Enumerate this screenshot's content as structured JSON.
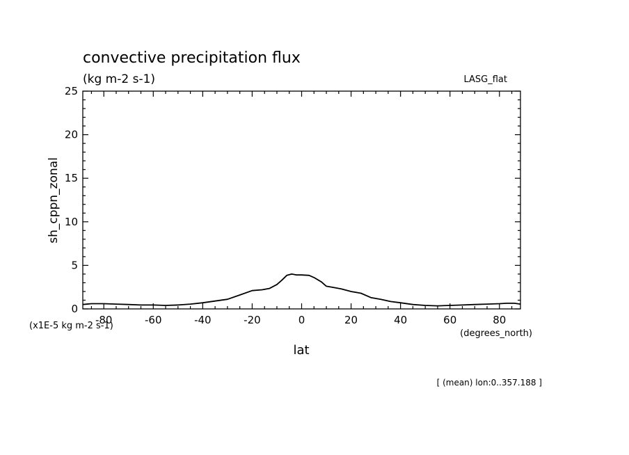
{
  "chart_data": {
    "type": "line",
    "title": "convective precipitation flux",
    "subtitle": "(kg m-2 s-1)",
    "dataset_label": "LASG_flat",
    "xlabel": "lat",
    "xunits": "(degrees_north)",
    "ylabel": "sh_cppn_zonal",
    "yunits": "(x1E-5 kg m-2 s-1)",
    "footnote": "[ (mean) lon:0..357.188 ]",
    "xlim": [
      -88.5,
      88.5
    ],
    "ylim": [
      0,
      25
    ],
    "x_ticks": [
      -80,
      -60,
      -40,
      -20,
      0,
      20,
      40,
      60,
      80
    ],
    "y_ticks": [
      0,
      5,
      10,
      15,
      20,
      25
    ],
    "grid": false,
    "line_color": "#000000",
    "series": [
      {
        "x": [
          -88.5,
          -85,
          -80,
          -75,
          -70,
          -65,
          -60,
          -55,
          -50,
          -45,
          -40,
          -35,
          -30,
          -25,
          -20,
          -16,
          -13,
          -10,
          -8,
          -6,
          -4,
          -2,
          0,
          3,
          5,
          8,
          10,
          13,
          16,
          20,
          24,
          28,
          32,
          36,
          40,
          45,
          50,
          55,
          60,
          65,
          70,
          75,
          80,
          83,
          86,
          88.5
        ],
        "y": [
          0.5,
          0.6,
          0.6,
          0.55,
          0.5,
          0.45,
          0.45,
          0.4,
          0.45,
          0.55,
          0.7,
          0.9,
          1.1,
          1.6,
          2.1,
          2.2,
          2.35,
          2.8,
          3.3,
          3.85,
          4.0,
          3.9,
          3.9,
          3.85,
          3.6,
          3.1,
          2.6,
          2.45,
          2.3,
          2.0,
          1.8,
          1.3,
          1.1,
          0.85,
          0.7,
          0.5,
          0.4,
          0.35,
          0.4,
          0.45,
          0.5,
          0.55,
          0.6,
          0.65,
          0.65,
          0.55
        ]
      }
    ]
  }
}
